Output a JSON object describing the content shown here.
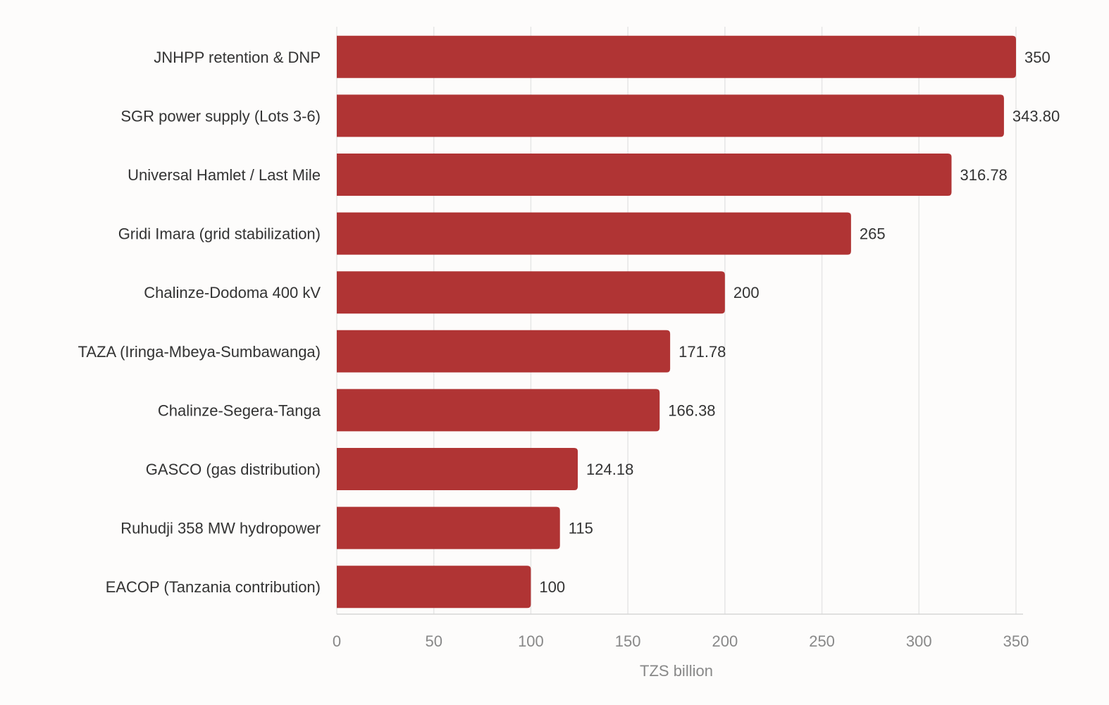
{
  "chart_data": {
    "type": "bar",
    "orientation": "horizontal",
    "categories": [
      "JNHPP retention & DNP",
      "SGR power supply (Lots 3-6)",
      "Universal Hamlet / Last Mile",
      "Gridi Imara (grid stabilization)",
      "Chalinze-Dodoma 400 kV",
      "TAZA (Iringa-Mbeya-Sumbawanga)",
      "Chalinze-Segera-Tanga",
      "GASCO (gas distribution)",
      "Ruhudji 358 MW hydropower",
      "EACOP (Tanzania contribution)"
    ],
    "values": [
      350,
      343.8,
      316.78,
      265,
      200,
      171.78,
      166.38,
      124.18,
      115,
      100
    ],
    "value_labels": [
      "350",
      "343.80",
      "316.78",
      "265",
      "200",
      "171.78",
      "166.38",
      "124.18",
      "115",
      "100"
    ],
    "xlabel": "TZS billion",
    "xlim": [
      0,
      350
    ],
    "xticks": [
      0,
      50,
      100,
      150,
      200,
      250,
      300,
      350
    ],
    "grid": true,
    "bar_color": "#b03434"
  }
}
